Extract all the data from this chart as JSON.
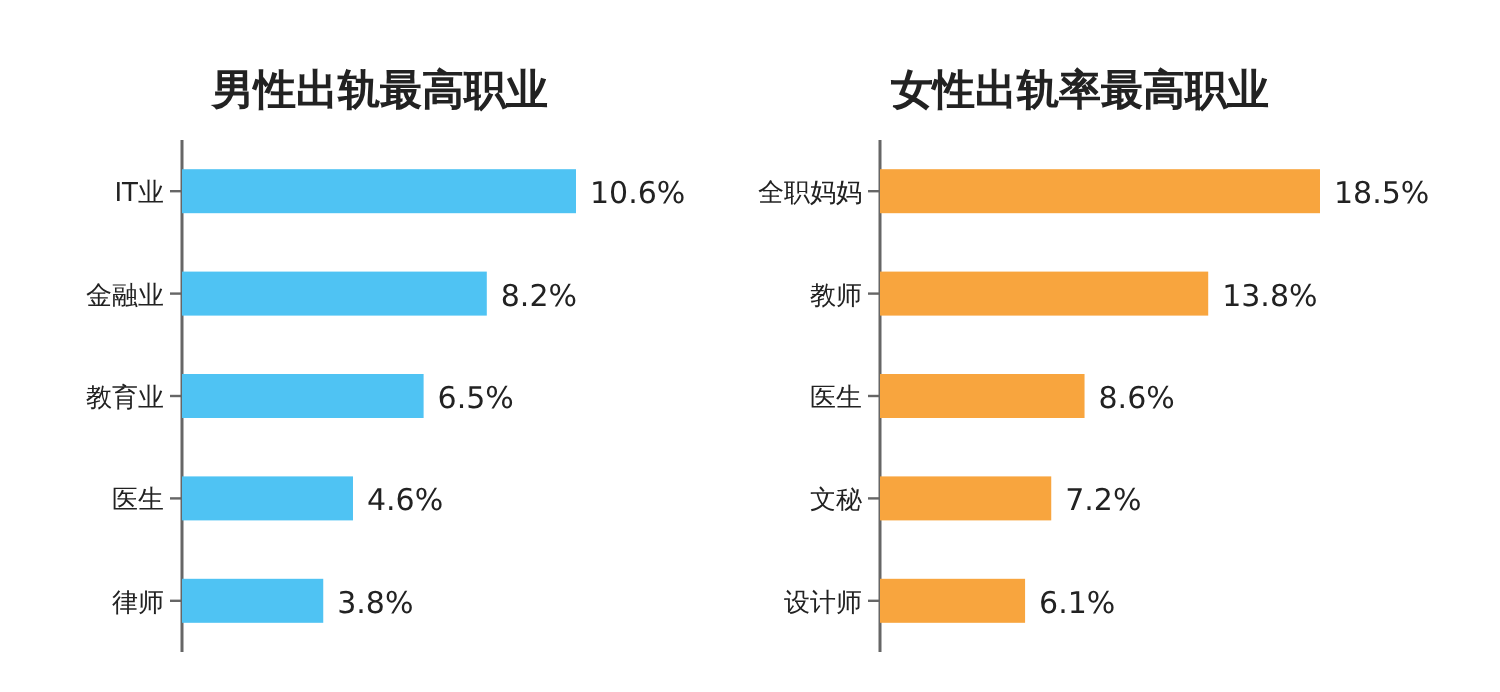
{
  "chart_data": [
    {
      "type": "bar",
      "orientation": "horizontal",
      "title": "男性出轨最高职业",
      "categories": [
        "IT业",
        "金融业",
        "教育业",
        "医生",
        "律师"
      ],
      "values": [
        10.6,
        8.2,
        6.5,
        4.6,
        3.8
      ],
      "value_labels": [
        "10.6%",
        "8.2%",
        "6.5%",
        "4.6%",
        "3.8%"
      ],
      "color": "#4fc3f3"
    },
    {
      "type": "bar",
      "orientation": "horizontal",
      "title": "女性出轨率最高职业",
      "categories": [
        "全职妈妈",
        "教师",
        "医生",
        "文秘",
        "设计师"
      ],
      "values": [
        18.5,
        13.8,
        8.6,
        7.2,
        6.1
      ],
      "value_labels": [
        "18.5%",
        "13.8%",
        "8.6%",
        "7.2%",
        "6.1%"
      ],
      "color": "#f8a53e"
    }
  ]
}
